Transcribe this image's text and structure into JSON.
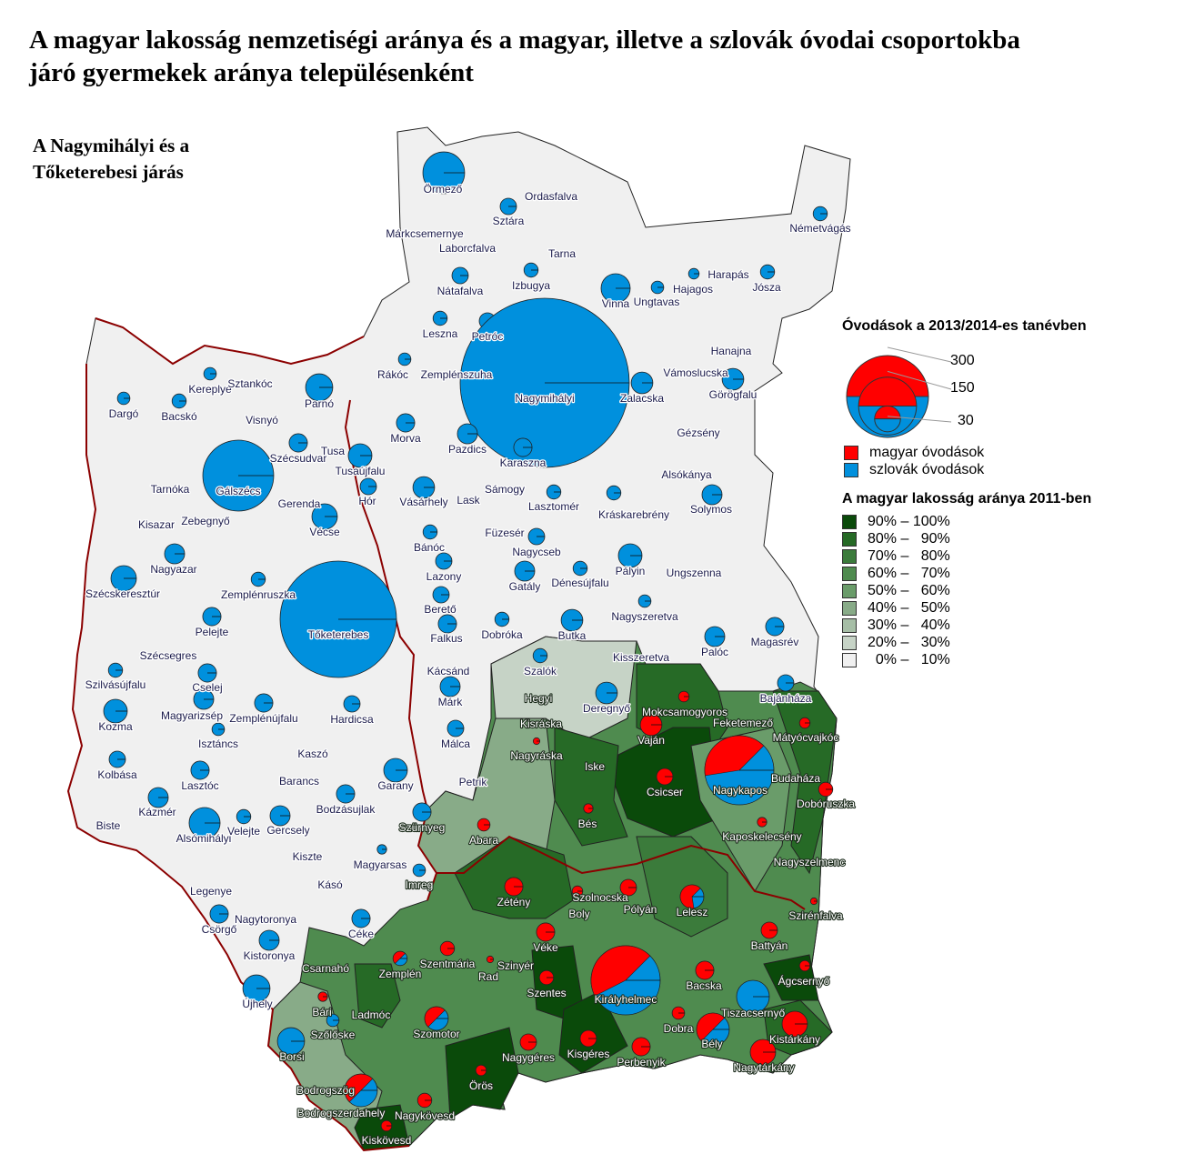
{
  "title": {
    "line1": "A magyar lakosság nemzetiségi aránya és a magyar, illetve a szlovák óvodai csoportokba",
    "line2": "járó gyermekek aránya településenként"
  },
  "subtitle": {
    "line1": "A Nagymihályi és a",
    "line2": "Tőketerebesi járás"
  },
  "legend": {
    "kindergarten_title": "Óvodások a 2013/2014-es tanévben",
    "size_labels": [
      "300",
      "150",
      "30"
    ],
    "size_values": [
      300,
      150,
      30
    ],
    "hungarian_label": "magyar óvodások",
    "slovak_label": "szlovák óvodások",
    "hungarian_color": "#ff0000",
    "slovak_color": "#0090dd",
    "population_title": "A magyar lakosság aránya 2011-ben",
    "classes": [
      {
        "label": "90% – 100%",
        "color": "#0a4a0a"
      },
      {
        "label": "80% –   90%",
        "color": "#266a26"
      },
      {
        "label": "70% –   80%",
        "color": "#3b7b3b"
      },
      {
        "label": "60% –   70%",
        "color": "#4f8b4f"
      },
      {
        "label": "50% –   60%",
        "color": "#6a9c6a"
      },
      {
        "label": "40% –   50%",
        "color": "#88ab88"
      },
      {
        "label": "30% –   40%",
        "color": "#a6bea6"
      },
      {
        "label": "20% –   30%",
        "color": "#c6d3c6"
      },
      {
        "label": "  0% –   10%",
        "color": "#f0f0f0"
      }
    ]
  },
  "settlements": [
    {
      "name": "Örmező",
      "total": 78,
      "hu": 0
    },
    {
      "name": "Sztára",
      "total": 12,
      "hu": 0
    },
    {
      "name": "Ordasfalva"
    },
    {
      "name": "Márkcsemernye"
    },
    {
      "name": "Laborcfalva"
    },
    {
      "name": "Tarna"
    },
    {
      "name": "Németvágás",
      "total": 9,
      "hu": 0
    },
    {
      "name": "Nátafalva",
      "total": 12,
      "hu": 0
    },
    {
      "name": "Izbugya",
      "total": 9,
      "hu": 0
    },
    {
      "name": "Vinna",
      "total": 38,
      "hu": 0
    },
    {
      "name": "Ungtavas",
      "total": 7,
      "hu": 0
    },
    {
      "name": "Hajagos",
      "total": 5,
      "hu": 0
    },
    {
      "name": "Harapás"
    },
    {
      "name": "Jósza",
      "total": 9,
      "hu": 0
    },
    {
      "name": "Leszna",
      "total": 9,
      "hu": 0
    },
    {
      "name": "Petróc",
      "total": 12,
      "hu": 0
    },
    {
      "name": "Nagymihályi",
      "total": 1281,
      "hu": 0
    },
    {
      "name": "Hanajna"
    },
    {
      "name": "Rákóc",
      "total": 7,
      "hu": 0
    },
    {
      "name": "Zemplénszuha"
    },
    {
      "name": "Vámoslucska"
    },
    {
      "name": "Zalacska",
      "total": 21,
      "hu": 0
    },
    {
      "name": "Görögfalu",
      "total": 21,
      "hu": 0
    },
    {
      "name": "Dargó",
      "total": 7,
      "hu": 0
    },
    {
      "name": "Kereplye",
      "total": 7,
      "hu": 0
    },
    {
      "name": "Sztankóc"
    },
    {
      "name": "Parnó",
      "total": 33,
      "hu": 0
    },
    {
      "name": "Bacskó",
      "total": 9,
      "hu": 0
    },
    {
      "name": "Visnyó"
    },
    {
      "name": "Morva",
      "total": 15,
      "hu": 0
    },
    {
      "name": "Pazdics",
      "total": 18,
      "hu": 0
    },
    {
      "name": "Karaszna",
      "total": 15,
      "hu": 0
    },
    {
      "name": "Gézsény"
    },
    {
      "name": "Tusa"
    },
    {
      "name": "Szécsudvar",
      "total": 15,
      "hu": 0
    },
    {
      "name": "Tusaújfalu",
      "total": 25,
      "hu": 0
    },
    {
      "name": "Gálszécs",
      "total": 225,
      "hu": 0
    },
    {
      "name": "Tarnóka"
    },
    {
      "name": "Alsókánya"
    },
    {
      "name": "Hór",
      "total": 12,
      "hu": 0
    },
    {
      "name": "Vásárhely",
      "total": 21,
      "hu": 0
    },
    {
      "name": "Lask"
    },
    {
      "name": "Sámogy"
    },
    {
      "name": "Lasztomér",
      "total": 9,
      "hu": 0
    },
    {
      "name": "Solymos",
      "total": 18,
      "hu": 0
    },
    {
      "name": "Gerenda"
    },
    {
      "name": "Zebegnyő"
    },
    {
      "name": "Kisazar"
    },
    {
      "name": "Vécse",
      "total": 29,
      "hu": 0
    },
    {
      "name": "Kráskarebrény",
      "total": 9,
      "hu": 0
    },
    {
      "name": "Füzesér"
    },
    {
      "name": "Bánóc",
      "total": 9,
      "hu": 0
    },
    {
      "name": "Nagycseb",
      "total": 12,
      "hu": 0
    },
    {
      "name": "Nagyazar",
      "total": 18,
      "hu": 0
    },
    {
      "name": "Zemplénruszka",
      "total": 9,
      "hu": 0
    },
    {
      "name": "Lazony",
      "total": 12,
      "hu": 0
    },
    {
      "name": "Gatály",
      "total": 18,
      "hu": 0
    },
    {
      "name": "Dénesújfalu",
      "total": 9,
      "hu": 0
    },
    {
      "name": "Pályin",
      "total": 25,
      "hu": 0
    },
    {
      "name": "Ungszenna"
    },
    {
      "name": "Szécskeresztúr",
      "total": 29,
      "hu": 0
    },
    {
      "name": "Berető",
      "total": 12,
      "hu": 0
    },
    {
      "name": "Tőketerebes",
      "total": 607,
      "hu": 0
    },
    {
      "name": "Nagyszeretva",
      "total": 7,
      "hu": 0
    },
    {
      "name": "Pelejte",
      "total": 15,
      "hu": 0
    },
    {
      "name": "Falkus",
      "total": 15,
      "hu": 0
    },
    {
      "name": "Dobróka",
      "total": 9,
      "hu": 0
    },
    {
      "name": "Butka",
      "total": 21,
      "hu": 0
    },
    {
      "name": "Palóc",
      "total": 18,
      "hu": 0
    },
    {
      "name": "Magasrév",
      "total": 15,
      "hu": 0
    },
    {
      "name": "Kisszeretva"
    },
    {
      "name": "Szécsegres"
    },
    {
      "name": "Szalók",
      "total": 9,
      "hu": 0
    },
    {
      "name": "Kácsánd"
    },
    {
      "name": "Szilvásújfalu",
      "total": 9,
      "hu": 0
    },
    {
      "name": "Cselej",
      "total": 15,
      "hu": 0
    },
    {
      "name": "Bajánháza",
      "total": 12,
      "hu": 0
    },
    {
      "name": "Márk",
      "total": 18,
      "hu": 0
    },
    {
      "name": "Hegyi"
    },
    {
      "name": "Deregnyő",
      "total": 21,
      "hu": 0
    },
    {
      "name": "Magyarizsép",
      "total": 18,
      "hu": 0
    },
    {
      "name": "Zemplénújfalu",
      "total": 15,
      "hu": 0
    },
    {
      "name": "Hardicsa",
      "total": 12,
      "hu": 0
    },
    {
      "name": "Kozma",
      "total": 25,
      "hu": 0
    },
    {
      "name": "Mokcsamogyoros",
      "total": 5,
      "hu": 1
    },
    {
      "name": "Vaján",
      "total": 21,
      "hu": 1
    },
    {
      "name": "Feketemező"
    },
    {
      "name": "Kisráska"
    },
    {
      "name": "Mátyócvajkóc",
      "total": 5,
      "hu": 1
    },
    {
      "name": "Isztáncs",
      "total": 7,
      "hu": 0
    },
    {
      "name": "Málca",
      "total": 12,
      "hu": 0
    },
    {
      "name": "Kaszó"
    },
    {
      "name": "Nagyráska",
      "total": 2,
      "hu": 1
    },
    {
      "name": "Iske"
    },
    {
      "name": "Nagykapos",
      "total": 214,
      "hu": 0.4
    },
    {
      "name": "Budaháza"
    },
    {
      "name": "Kolbása",
      "total": 12,
      "hu": 0
    },
    {
      "name": "Lasztóc",
      "total": 15,
      "hu": 0
    },
    {
      "name": "Barancs"
    },
    {
      "name": "Garany",
      "total": 25,
      "hu": 0
    },
    {
      "name": "Petrik"
    },
    {
      "name": "Csicser",
      "total": 12,
      "hu": 1
    },
    {
      "name": "Dobóruszka",
      "total": 9,
      "hu": 1
    },
    {
      "name": "Bodzásujlak",
      "total": 15,
      "hu": 0
    },
    {
      "name": "Kázmér",
      "total": 18,
      "hu": 0
    },
    {
      "name": "Bés",
      "total": 4,
      "hu": 1
    },
    {
      "name": "Biste"
    },
    {
      "name": "Alsómihályi",
      "total": 43,
      "hu": 0
    },
    {
      "name": "Velejte",
      "total": 9,
      "hu": 0
    },
    {
      "name": "Gercsely",
      "total": 18,
      "hu": 0
    },
    {
      "name": "Szürnyeg",
      "total": 15,
      "hu": 0
    },
    {
      "name": "Abara",
      "total": 7,
      "hu": 1
    },
    {
      "name": "Kaposkelecsény",
      "total": 4,
      "hu": 1
    },
    {
      "name": "Kiszte"
    },
    {
      "name": "Magyarsas",
      "total": 4,
      "hu": 0
    },
    {
      "name": "Nagyszelmenc"
    },
    {
      "name": "Imreg",
      "total": 7,
      "hu": 0
    },
    {
      "name": "Kásó"
    },
    {
      "name": "Zétény",
      "total": 15,
      "hu": 1
    },
    {
      "name": "Szolnocska",
      "total": 5,
      "hu": 1
    },
    {
      "name": "Pólyán",
      "total": 12,
      "hu": 1
    },
    {
      "name": "Lelesz",
      "total": 25,
      "hu": 0.65
    },
    {
      "name": "Legenye"
    },
    {
      "name": "Boly"
    },
    {
      "name": "Szirénfalva",
      "total": 2,
      "hu": 1
    },
    {
      "name": "Nagytoronya"
    },
    {
      "name": "Csörgő",
      "total": 15,
      "hu": 0
    },
    {
      "name": "Céke",
      "total": 15,
      "hu": 0
    },
    {
      "name": "Battyán",
      "total": 12,
      "hu": 1
    },
    {
      "name": "Véke",
      "total": 15,
      "hu": 1
    },
    {
      "name": "Kistoronya",
      "total": 18,
      "hu": 0
    },
    {
      "name": "Szentmária",
      "total": 9,
      "hu": 1
    },
    {
      "name": "Zemplén",
      "total": 9,
      "hu": 0.5
    },
    {
      "name": "Szinyér"
    },
    {
      "name": "Rad",
      "total": 2,
      "hu": 1
    },
    {
      "name": "Csarnahó"
    },
    {
      "name": "Szentes",
      "total": 9,
      "hu": 1
    },
    {
      "name": "Királyhelmec",
      "total": 214,
      "hu": 0.45
    },
    {
      "name": "Ágcsernyő",
      "total": 5,
      "hu": 1
    },
    {
      "name": "Bacska",
      "total": 15,
      "hu": 1
    },
    {
      "name": "Újhely",
      "total": 33,
      "hu": 0
    },
    {
      "name": "Ladmóc"
    },
    {
      "name": "Bári",
      "total": 4,
      "hu": 1
    },
    {
      "name": "Tiszacsernyő",
      "total": 48,
      "hu": 0
    },
    {
      "name": "Dobra",
      "total": 7,
      "hu": 1
    },
    {
      "name": "Szőlőske",
      "total": 7,
      "hu": 0
    },
    {
      "name": "Szomotor",
      "total": 25,
      "hu": 0.5
    },
    {
      "name": "Kistárkány",
      "total": 29,
      "hu": 1
    },
    {
      "name": "Bély",
      "total": 48,
      "hu": 0.5
    },
    {
      "name": "Borsi",
      "total": 33,
      "hu": 0
    },
    {
      "name": "Nagygéres",
      "total": 12,
      "hu": 1
    },
    {
      "name": "Kisgéres",
      "total": 12,
      "hu": 1
    },
    {
      "name": "Perbenyik",
      "total": 15,
      "hu": 1
    },
    {
      "name": "Nagytárkány",
      "total": 29,
      "hu": 1
    },
    {
      "name": "Örös",
      "total": 5,
      "hu": 1
    },
    {
      "name": "Bodrogszög",
      "total": 48,
      "hu": 0.5
    },
    {
      "name": "Bodrogszerdahely"
    },
    {
      "name": "Nagykövesd",
      "total": 9,
      "hu": 1
    },
    {
      "name": "Kiskövesd",
      "total": 5,
      "hu": 1
    }
  ]
}
